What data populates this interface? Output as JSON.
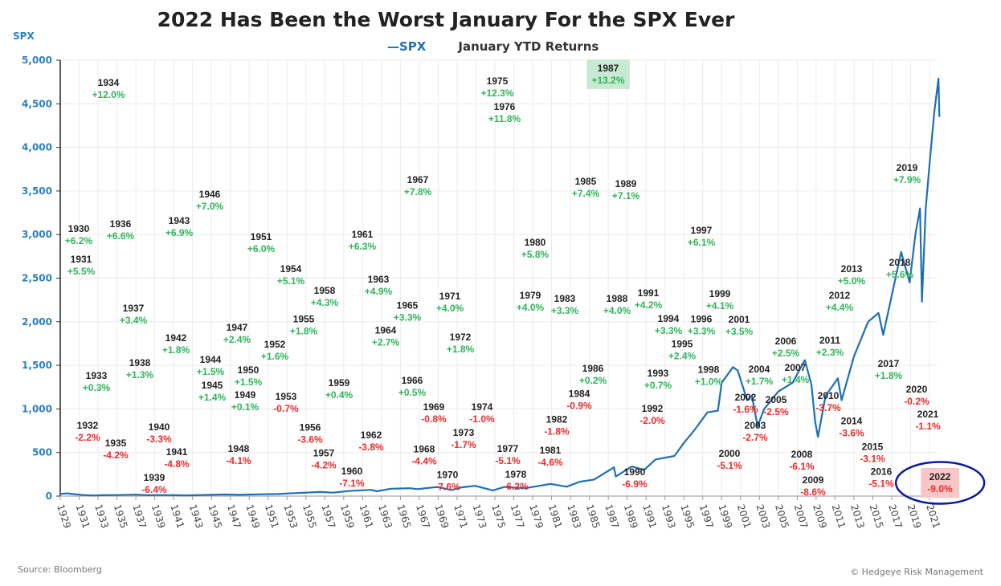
{
  "chart_data": {
    "type": "line",
    "title": "2022 Has Been the Worst January For the SPX Ever",
    "ylabel": "SPX",
    "ylim": [
      0,
      5000
    ],
    "yticks": [
      0,
      500,
      1000,
      1500,
      2000,
      2500,
      3000,
      3500,
      4000,
      4500,
      5000
    ],
    "ytick_labels": [
      "0",
      "500",
      "1,000",
      "1,500",
      "2,000",
      "2,500",
      "3,000",
      "3,500",
      "4,000",
      "4,500",
      "5,000"
    ],
    "xlim": [
      1929,
      2022
    ],
    "xticks": [
      1929,
      1931,
      1933,
      1935,
      1937,
      1939,
      1941,
      1943,
      1945,
      1947,
      1949,
      1951,
      1953,
      1955,
      1957,
      1959,
      1961,
      1963,
      1965,
      1967,
      1969,
      1971,
      1973,
      1975,
      1977,
      1979,
      1981,
      1983,
      1985,
      1987,
      1989,
      1991,
      1993,
      1995,
      1997,
      1999,
      2001,
      2003,
      2005,
      2007,
      2009,
      2011,
      2013,
      2015,
      2017,
      2019,
      2021
    ],
    "grid": true,
    "legend": {
      "placement": "top-center",
      "entries": [
        "SPX",
        "January YTD Returns"
      ]
    },
    "colors": {
      "spx": "#1f6fb7",
      "positive": "#2fb45a",
      "negative": "#ee2a2a",
      "highlight_pos": "#c8ead2",
      "highlight_neg": "#f7c6c6",
      "circle": "#0a1aa0"
    },
    "series": [
      {
        "name": "SPX",
        "x": [
          1929.0,
          1929.7,
          1930.5,
          1931.5,
          1932.5,
          1933.5,
          1935,
          1937,
          1938.2,
          1940,
          1942.3,
          1944,
          1946.4,
          1948,
          1950,
          1952,
          1954,
          1956.5,
          1957.9,
          1959.5,
          1961.9,
          1962.5,
          1964,
          1966,
          1966.8,
          1968.9,
          1970.4,
          1971.5,
          1972.9,
          1974.8,
          1976,
          1978.2,
          1980.9,
          1982.6,
          1984,
          1985.5,
          1987.6,
          1987.8,
          1989.5,
          1990.8,
          1992,
          1994,
          1995,
          1996,
          1997.5,
          1998.6,
          1999,
          2000.2,
          2000.7,
          2001.7,
          2002.2,
          2002.8,
          2003.5,
          2005,
          2006.5,
          2007.8,
          2008.5,
          2008.9,
          2009.2,
          2010,
          2011.3,
          2011.7,
          2013,
          2014.5,
          2015.6,
          2016.1,
          2017,
          2018,
          2018.9,
          2019.5,
          2020,
          2020.2,
          2020.6,
          2021,
          2021.5,
          2021.95,
          2022.05
        ],
        "values": [
          25,
          31,
          22,
          12,
          7,
          10,
          12,
          17,
          10,
          12,
          8,
          12,
          18,
          15,
          20,
          24,
          35,
          47,
          40,
          58,
          72,
          55,
          85,
          90,
          80,
          105,
          70,
          100,
          118,
          65,
          105,
          90,
          140,
          108,
          165,
          190,
          330,
          225,
          340,
          300,
          420,
          460,
          610,
          740,
          960,
          980,
          1300,
          1480,
          1440,
          1100,
          1150,
          800,
          1000,
          1200,
          1300,
          1560,
          1280,
          850,
          680,
          1150,
          1350,
          1100,
          1600,
          2000,
          2100,
          1850,
          2300,
          2800,
          2450,
          3000,
          3300,
          2230,
          3300,
          3800,
          4400,
          4790,
          4350
        ]
      }
    ],
    "annotations": [
      {
        "year": "1930",
        "ret": "+6.2%"
      },
      {
        "year": "1931",
        "ret": "+5.5%"
      },
      {
        "year": "1932",
        "ret": "-2.2%"
      },
      {
        "year": "1933",
        "ret": "+0.3%"
      },
      {
        "year": "1934",
        "ret": "+12.0%"
      },
      {
        "year": "1935",
        "ret": "-4.2%"
      },
      {
        "year": "1936",
        "ret": "+6.6%"
      },
      {
        "year": "1937",
        "ret": "+3.4%"
      },
      {
        "year": "1938",
        "ret": "+1.3%"
      },
      {
        "year": "1939",
        "ret": "-6.4%"
      },
      {
        "year": "1940",
        "ret": "-3.3%"
      },
      {
        "year": "1941",
        "ret": "-4.8%"
      },
      {
        "year": "1942",
        "ret": "+1.8%"
      },
      {
        "year": "1943",
        "ret": "+6.9%"
      },
      {
        "year": "1944",
        "ret": "+1.5%"
      },
      {
        "year": "1945",
        "ret": "+1.4%"
      },
      {
        "year": "1946",
        "ret": "+7.0%"
      },
      {
        "year": "1947",
        "ret": "+2.4%"
      },
      {
        "year": "1948",
        "ret": "-4.1%"
      },
      {
        "year": "1949",
        "ret": "+0.1%"
      },
      {
        "year": "1950",
        "ret": "+1.5%"
      },
      {
        "year": "1951",
        "ret": "+6.0%"
      },
      {
        "year": "1952",
        "ret": "+1.6%"
      },
      {
        "year": "1953",
        "ret": "-0.7%"
      },
      {
        "year": "1954",
        "ret": "+5.1%"
      },
      {
        "year": "1955",
        "ret": "+1.8%"
      },
      {
        "year": "1956",
        "ret": "-3.6%"
      },
      {
        "year": "1957",
        "ret": "-4.2%"
      },
      {
        "year": "1958",
        "ret": "+4.3%"
      },
      {
        "year": "1959",
        "ret": "+0.4%"
      },
      {
        "year": "1960",
        "ret": "-7.1%"
      },
      {
        "year": "1961",
        "ret": "+6.3%"
      },
      {
        "year": "1962",
        "ret": "-3.8%"
      },
      {
        "year": "1963",
        "ret": "+4.9%"
      },
      {
        "year": "1964",
        "ret": "+2.7%"
      },
      {
        "year": "1965",
        "ret": "+3.3%"
      },
      {
        "year": "1966",
        "ret": "+0.5%"
      },
      {
        "year": "1967",
        "ret": "+7.8%"
      },
      {
        "year": "1968",
        "ret": "-4.4%"
      },
      {
        "year": "1969",
        "ret": "-0.8%"
      },
      {
        "year": "1970",
        "ret": "-7.6%"
      },
      {
        "year": "1971",
        "ret": "+4.0%"
      },
      {
        "year": "1972",
        "ret": "+1.8%"
      },
      {
        "year": "1973",
        "ret": "-1.7%"
      },
      {
        "year": "1974",
        "ret": "-1.0%"
      },
      {
        "year": "1975",
        "ret": "+12.3%"
      },
      {
        "year": "1976",
        "ret": "+11.8%"
      },
      {
        "year": "1977",
        "ret": "-5.1%"
      },
      {
        "year": "1978",
        "ret": "-6.2%"
      },
      {
        "year": "1979",
        "ret": "+4.0%"
      },
      {
        "year": "1980",
        "ret": "+5.8%"
      },
      {
        "year": "1981",
        "ret": "-4.6%"
      },
      {
        "year": "1982",
        "ret": "-1.8%"
      },
      {
        "year": "1983",
        "ret": "+3.3%"
      },
      {
        "year": "1984",
        "ret": "-0.9%"
      },
      {
        "year": "1985",
        "ret": "+7.4%"
      },
      {
        "year": "1986",
        "ret": "+0.2%"
      },
      {
        "year": "1987",
        "ret": "+13.2%"
      },
      {
        "year": "1988",
        "ret": "+4.0%"
      },
      {
        "year": "1989",
        "ret": "+7.1%"
      },
      {
        "year": "1990",
        "ret": "-6.9%"
      },
      {
        "year": "1991",
        "ret": "+4.2%"
      },
      {
        "year": "1992",
        "ret": "-2.0%"
      },
      {
        "year": "1993",
        "ret": "+0.7%"
      },
      {
        "year": "1994",
        "ret": "+3.3%"
      },
      {
        "year": "1995",
        "ret": "+2.4%"
      },
      {
        "year": "1996",
        "ret": "+3.3%"
      },
      {
        "year": "1997",
        "ret": "+6.1%"
      },
      {
        "year": "1998",
        "ret": "+1.0%"
      },
      {
        "year": "1999",
        "ret": "+4.1%"
      },
      {
        "year": "2000",
        "ret": "-5.1%"
      },
      {
        "year": "2001",
        "ret": "+3.5%"
      },
      {
        "year": "2002",
        "ret": "-1.6%"
      },
      {
        "year": "2003",
        "ret": "-2.7%"
      },
      {
        "year": "2004",
        "ret": "+1.7%"
      },
      {
        "year": "2005",
        "ret": "-2.5%"
      },
      {
        "year": "2006",
        "ret": "+2.5%"
      },
      {
        "year": "2007",
        "ret": "+1.4%"
      },
      {
        "year": "2008",
        "ret": "-6.1%"
      },
      {
        "year": "2009",
        "ret": "-8.6%"
      },
      {
        "year": "2010",
        "ret": "-3.7%"
      },
      {
        "year": "2011",
        "ret": "+2.3%"
      },
      {
        "year": "2012",
        "ret": "+4.4%"
      },
      {
        "year": "2013",
        "ret": "+5.0%"
      },
      {
        "year": "2014",
        "ret": "-3.6%"
      },
      {
        "year": "2015",
        "ret": "-3.1%"
      },
      {
        "year": "2016",
        "ret": "-5.1%"
      },
      {
        "year": "2017",
        "ret": "+1.8%"
      },
      {
        "year": "2018",
        "ret": "+5.6%"
      },
      {
        "year": "2019",
        "ret": "+7.9%"
      },
      {
        "year": "2020",
        "ret": "-0.2%"
      },
      {
        "year": "2021",
        "ret": "-1.1%"
      },
      {
        "year": "2022",
        "ret": "-9.0%",
        "highlight": true
      }
    ]
  },
  "labels": {
    "yunit": "SPX",
    "legend_spx": "—SPX",
    "legend_returns": "January YTD Returns",
    "source": "Source: Bloomberg",
    "copyright": "© Hedgeye Risk Management"
  }
}
